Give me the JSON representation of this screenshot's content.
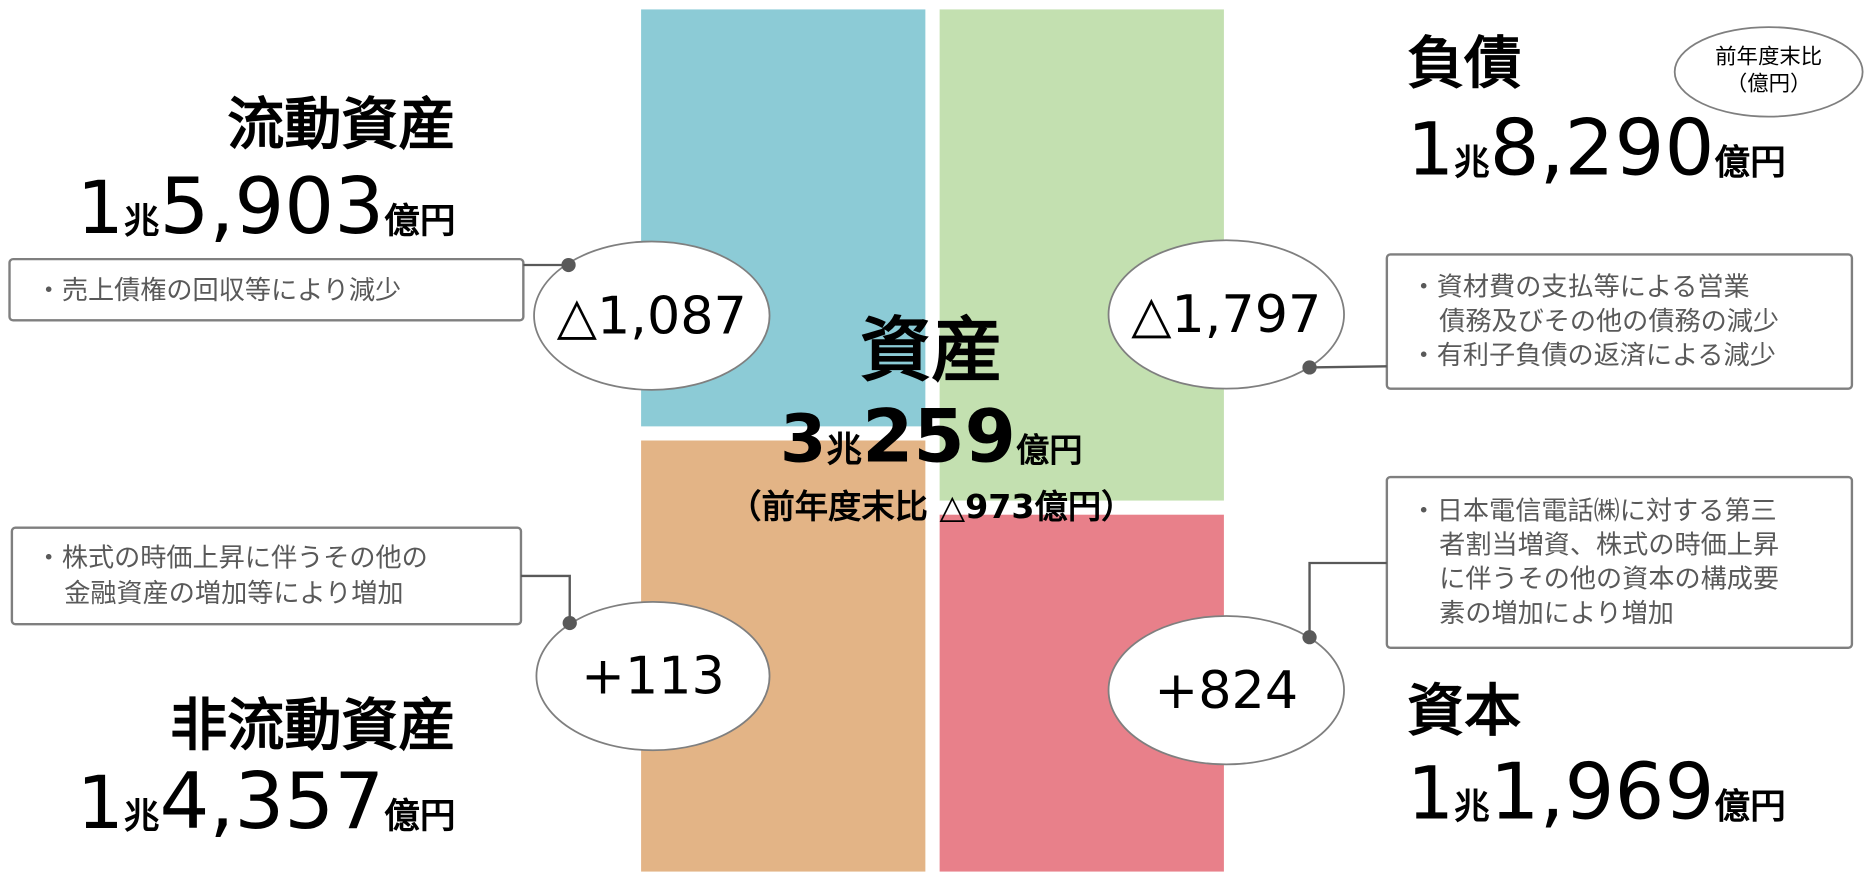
{
  "current_assets": {
    "title": "流動資産",
    "amount": [
      "1",
      "兆",
      "5,903",
      "億円"
    ],
    "change": "△1,087",
    "note": [
      "・売上債権の回収等により減少"
    ]
  },
  "non_current_assets": {
    "title": "非流動資産",
    "amount": [
      "1",
      "兆",
      "4,357",
      "億円"
    ],
    "change": "+113",
    "note": [
      "・株式の時価上昇に伴うその他の",
      "金融資産の増加等により増加"
    ]
  },
  "total_assets": {
    "title": "資産",
    "amount": [
      "3",
      "兆",
      "259",
      "億円"
    ],
    "change": "（前年度末比 △973億円）"
  },
  "liabilities": {
    "title": "負債",
    "amount": [
      "1",
      "兆",
      "8,290",
      "億円"
    ],
    "change": "△1,797",
    "note": [
      "・資材費の支払等による営業",
      "債務及びその他の債務の減少",
      "・有利子負債の返済による減少"
    ]
  },
  "equity": {
    "title": "資本",
    "amount": [
      "1",
      "兆",
      "1,969",
      "億円"
    ],
    "change": "+824",
    "note": [
      "・日本電信電話㈱に対する第三",
      "者割当増資、株式の時価上昇",
      "に伴うその他の資本の構成要",
      "素の増加により増加"
    ]
  },
  "unit_note": [
    "前年度末比",
    "（億円）"
  ]
}
